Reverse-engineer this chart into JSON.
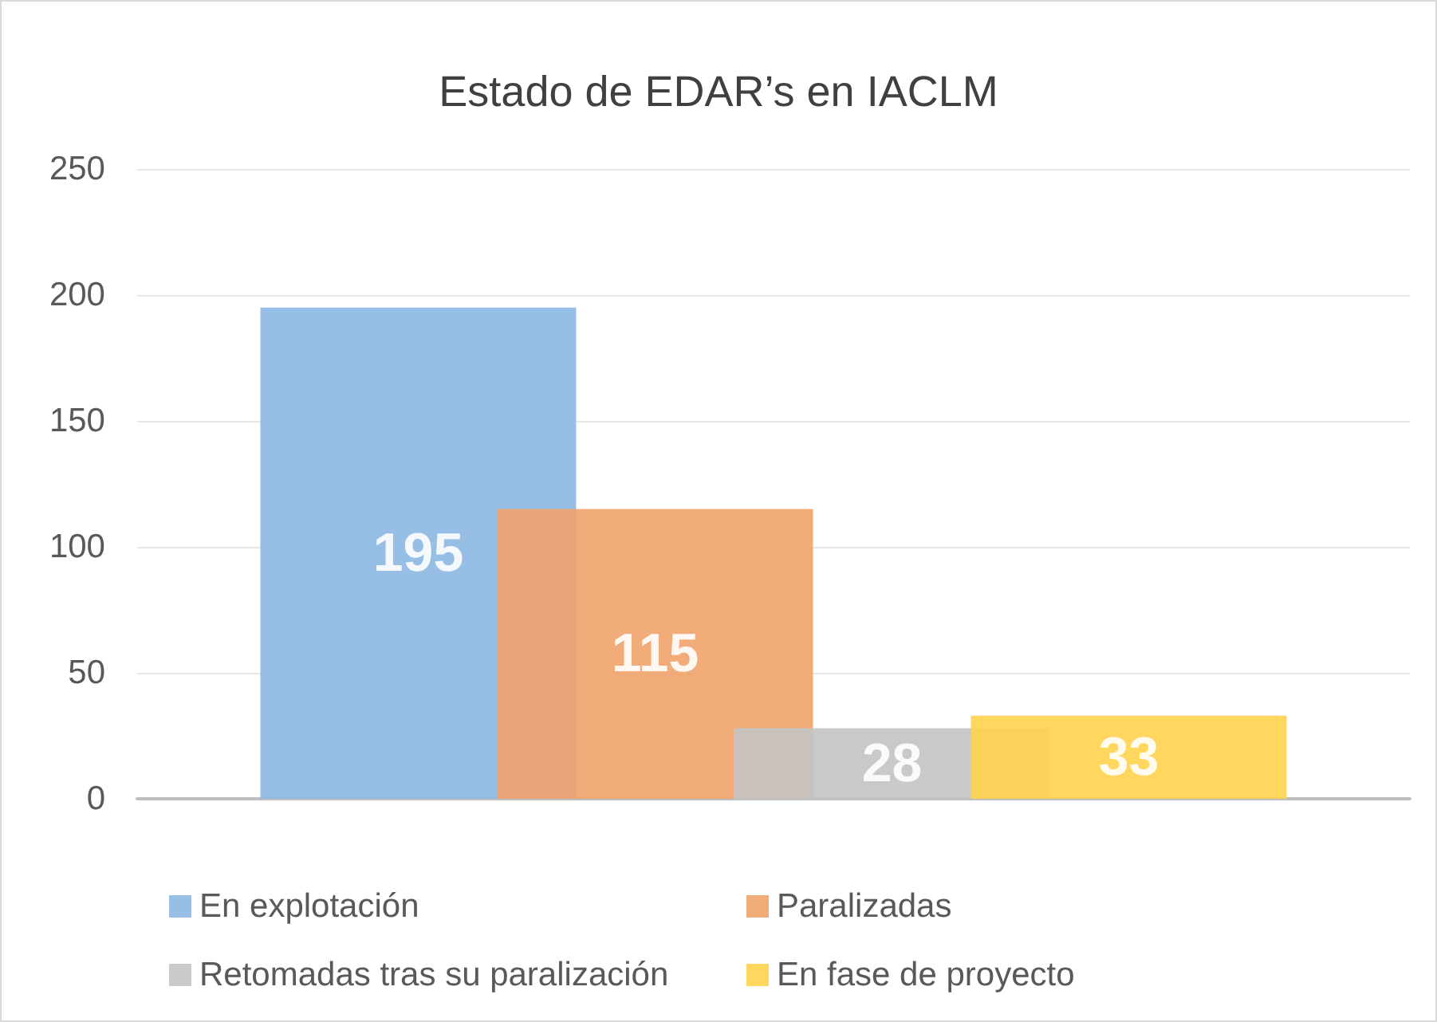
{
  "chart_data": {
    "type": "bar",
    "title": "Estado de EDAR’s en IACLM",
    "categories": [
      null
    ],
    "series": [
      {
        "name": "En explotación",
        "color": "#8cb8e2",
        "values": [
          195
        ]
      },
      {
        "name": "Paralizadas",
        "color": "#f1a36c",
        "values": [
          115
        ]
      },
      {
        "name": "Retomadas tras su paralización",
        "color": "#c3c3c3",
        "values": [
          28
        ]
      },
      {
        "name": "En fase de proyecto",
        "color": "#ffd34d",
        "values": [
          33
        ]
      }
    ],
    "ylim": [
      0,
      250
    ],
    "yticks": [
      0,
      50,
      100,
      150,
      200,
      250
    ],
    "grid": "y",
    "legend": "bottom",
    "data_labels": true
  }
}
